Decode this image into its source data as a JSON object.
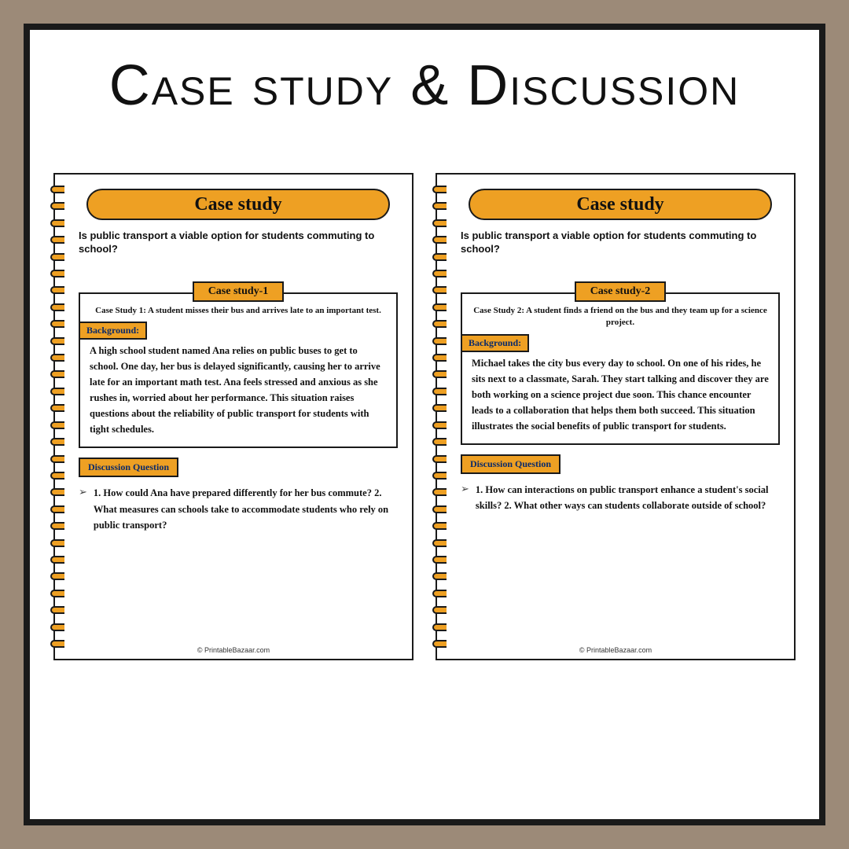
{
  "main_title": "Case study & Discussion",
  "colors": {
    "page_bg": "#9c8a78",
    "frame_bg": "#ffffff",
    "frame_border": "#1a1a1a",
    "accent": "#eea023",
    "tag_text": "#0a2a6a"
  },
  "pages": [
    {
      "pill_title": "Case study",
      "question": "Is public transport a viable option for students commuting to school?",
      "sub_label": "Case study-1",
      "summary": "Case Study 1: A student misses their bus and arrives late to an important test.",
      "background_label": "Background:",
      "background_text": "A high school student named Ana relies on public buses to get to school. One day, her bus is delayed significantly, causing her to arrive late for an important math test. Ana feels stressed and anxious as she rushes in, worried about her performance. This situation raises questions about the reliability of public transport for students with tight schedules.",
      "dq_label": "Discussion Question",
      "dq_text": "1. How could Ana have prepared differently for her bus commute? 2. What measures can schools take to accommodate students who rely on public transport?",
      "footer": "© PrintableBazaar.com"
    },
    {
      "pill_title": "Case study",
      "question": "Is public transport a viable option for students commuting to school?",
      "sub_label": "Case study-2",
      "summary": "Case Study 2: A student finds a friend on the bus and they team up for a science project.",
      "background_label": "Background:",
      "background_text": "Michael takes the city bus every day to school. On one of his rides, he sits next to a classmate, Sarah. They start talking and discover they are both working on a science project due soon. This chance encounter leads to a collaboration that helps them both succeed. This situation illustrates the social benefits of public transport for students.",
      "dq_label": "Discussion Question",
      "dq_text": "1. How can interactions on public transport enhance a student's social skills? 2. What other ways can students collaborate outside of school?",
      "footer": "© PrintableBazaar.com"
    }
  ]
}
